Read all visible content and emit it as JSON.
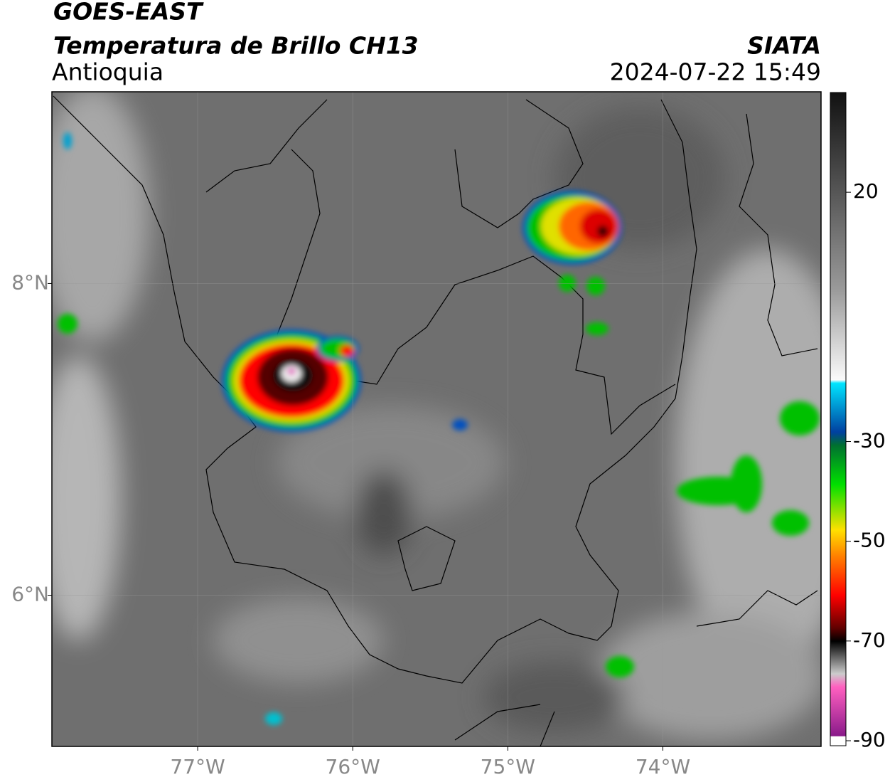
{
  "header": {
    "title": "GOES-EAST",
    "subtitle": "Temperatura de Brillo CH13",
    "region": "Antioquia",
    "source": "SIATA",
    "datetime": "2024-07-22 15:49"
  },
  "map": {
    "xlim": [
      -77.94,
      -72.98
    ],
    "ylim": [
      5.03,
      9.23
    ],
    "xticks": [
      {
        "value": -77,
        "label": "77°W"
      },
      {
        "value": -76,
        "label": "76°W"
      },
      {
        "value": -75,
        "label": "75°W"
      },
      {
        "value": -74,
        "label": "74°W"
      }
    ],
    "yticks": [
      {
        "value": 8,
        "label": "8°N"
      },
      {
        "value": 6,
        "label": "6°N"
      }
    ],
    "grid": true
  },
  "colorbar": {
    "clim": [
      -91,
      40
    ],
    "ticks": [
      20,
      -30,
      -50,
      -70,
      -90
    ]
  }
}
